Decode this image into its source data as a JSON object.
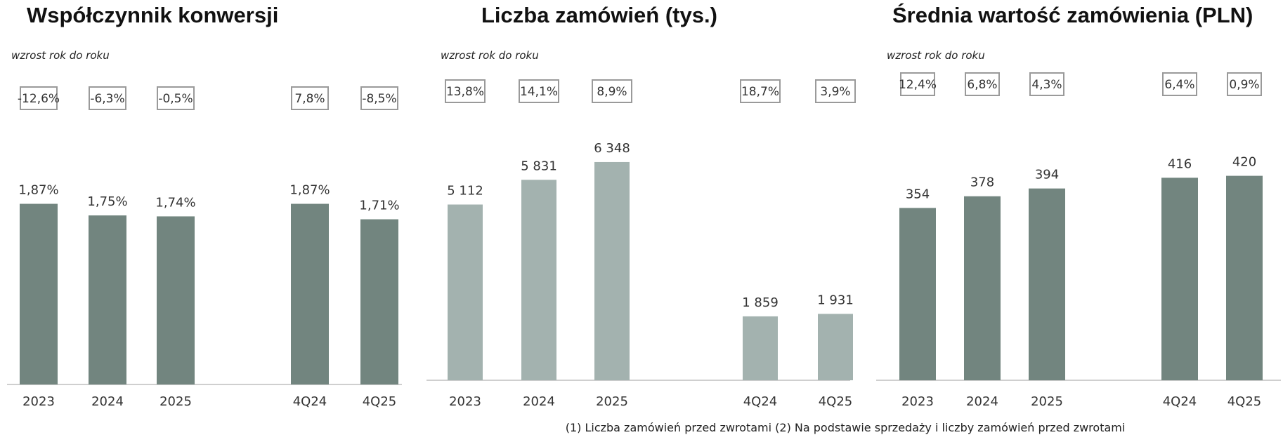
{
  "chart_data": [
    {
      "type": "bar",
      "title": "Współczynnik konwersji",
      "subtitle": "wzrost rok do roku",
      "categories": [
        "2023",
        "2024",
        "2025",
        "4Q24",
        "4Q25"
      ],
      "values": [
        1.87,
        1.75,
        1.74,
        1.87,
        1.71
      ],
      "value_labels": [
        "1,87%",
        "1,75%",
        "1,74%",
        "1,87%",
        "1,71%"
      ],
      "growth_labels": [
        "-12,6%",
        "-6,3%",
        "-0,5%",
        "7,8%",
        "-8,5%"
      ],
      "ylim": [
        0,
        2.6
      ],
      "bar_color": "#72857f",
      "grid": false
    },
    {
      "type": "bar",
      "title": "Liczba zamówień (tys.)",
      "subtitle": "wzrost rok do roku",
      "categories": [
        "2023",
        "2024",
        "2025",
        "4Q24",
        "4Q25"
      ],
      "values": [
        5112,
        5831,
        6348,
        1859,
        1931
      ],
      "value_labels": [
        "5 112",
        "5 831",
        "6 348",
        "1 859",
        "1 931"
      ],
      "growth_labels": [
        "13,8%",
        "14,1%",
        "8,9%",
        "18,7%",
        "3,9%"
      ],
      "ylim": [
        0,
        8000
      ],
      "bar_color": "#a3b2af",
      "grid": false
    },
    {
      "type": "bar",
      "title": "Średnia wartość zamówienia (PLN)",
      "subtitle": "wzrost rok do roku",
      "categories": [
        "2023",
        "2024",
        "2025",
        "4Q24",
        "4Q25"
      ],
      "values": [
        354,
        378,
        394,
        416,
        420
      ],
      "value_labels": [
        "354",
        "378",
        "394",
        "416",
        "420"
      ],
      "growth_labels": [
        "12,4%",
        "6,8%",
        "4,3%",
        "6,4%",
        "0,9%"
      ],
      "ylim": [
        0,
        565
      ],
      "bar_color": "#72857f",
      "grid": false
    }
  ],
  "footnote": "(1) Liczba zamówień przed zwrotami (2) Na podstawie sprzedaży i liczby zamówień przed zwrotami",
  "colors": {
    "growth_box_border": "#9a9a9a",
    "axis": "#cfcfcf"
  }
}
